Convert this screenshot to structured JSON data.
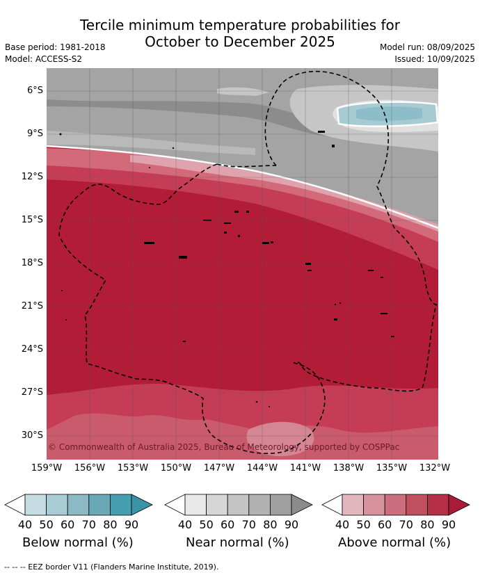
{
  "title": {
    "line1": "Tercile minimum temperature probabilities for",
    "line2": "October to December 2025"
  },
  "meta": {
    "base_period": "Base period: 1981-2018",
    "model": "Model: ACCESS-S2",
    "model_run": "Model run: 08/09/2025",
    "issued": "Issued: 10/09/2025"
  },
  "map": {
    "copyright": "© Commonwealth of Australia 2025, Bureau of Meteorology, supported by COSPPac",
    "latitude_ticks": [
      "6°S",
      "9°S",
      "12°S",
      "15°S",
      "18°S",
      "21°S",
      "24°S",
      "27°S",
      "30°S"
    ],
    "longitude_ticks": [
      "159°W",
      "156°W",
      "153°W",
      "150°W",
      "147°W",
      "144°W",
      "141°W",
      "138°W",
      "135°W",
      "132°W"
    ],
    "colors": {
      "near_normal_dark": "#8c8c8c",
      "near_normal_mid": "#a4a4a4",
      "near_normal_light": "#c6c6c6",
      "below_normal": "#8dbdc9",
      "above_normal_strong": "#b21c37",
      "above_normal_mid": "#c53d55",
      "above_normal_light": "#d26a79"
    }
  },
  "legend": {
    "below": {
      "label": "Below normal (%)",
      "ticks": [
        "40",
        "50",
        "60",
        "70",
        "80",
        "90"
      ],
      "colors": [
        "#ffffff",
        "#c4dce2",
        "#a9cbd4",
        "#8bb9c6",
        "#6aa8b7",
        "#459fb0",
        "#3993a4"
      ]
    },
    "near": {
      "label": "Near normal (%)",
      "ticks": [
        "40",
        "50",
        "60",
        "70",
        "80",
        "90"
      ],
      "colors": [
        "#ffffff",
        "#e8e8e8",
        "#d6d6d6",
        "#c4c4c4",
        "#b1b1b1",
        "#9f9f9f",
        "#8b8b8b"
      ]
    },
    "above": {
      "label": "Above normal (%)",
      "ticks": [
        "40",
        "50",
        "60",
        "70",
        "80",
        "90"
      ],
      "colors": [
        "#ffffff",
        "#e3b7bf",
        "#d6939e",
        "#cb6d7d",
        "#c0505e",
        "#b53046",
        "#a81c38"
      ]
    }
  },
  "footer": "--  --  -- EEZ border V11 (Flanders Marine Institute, 2019)."
}
